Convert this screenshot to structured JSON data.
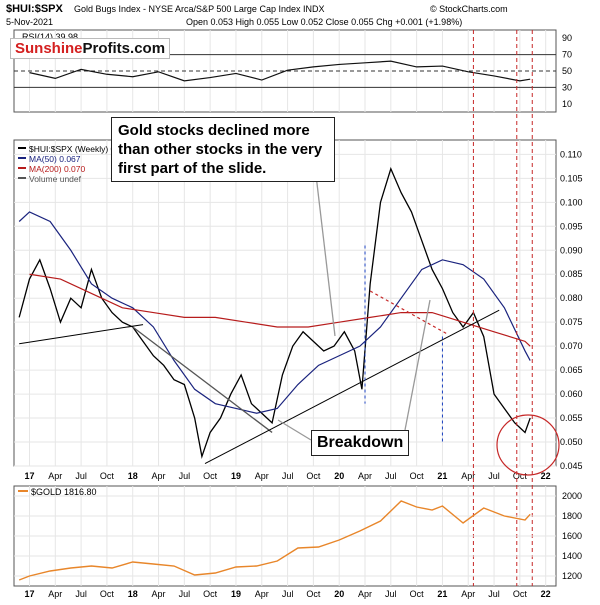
{
  "header": {
    "symbol": "$HUI:$SPX",
    "name": "Gold Bugs Index - NYSE Arca/S&P 500 Large Cap Index",
    "exchange": "INDX",
    "date": "5-Nov-2021",
    "quote": "Open 0.053  High 0.055  Low 0.052  Close 0.055  Chg +0.001 (+1.98%)",
    "credit": "© StockCharts.com"
  },
  "watermark": {
    "part1": "Sunshine",
    "part2": "Profits.com"
  },
  "colors": {
    "price": "#000000",
    "ma50": "#1a237e",
    "ma200": "#b71c1c",
    "gold": "#e8862a",
    "annotation_red": "#c62828",
    "annotation_blue": "#1a3fbf",
    "grid": "#e6e6e6"
  },
  "annotations": {
    "callout_main": "Gold stocks declined more than other stocks in the very first part of the slide.",
    "callout_breakdown": "Breakdown"
  },
  "chart_data": [
    {
      "type": "line",
      "panel": "rsi",
      "label": "RSI(14) 39.98",
      "ylim": [
        0,
        100
      ],
      "y_ticks": [
        10,
        30,
        50,
        70,
        90
      ],
      "reference_lines": [
        30,
        50,
        70
      ],
      "x": [
        2017.0,
        2017.25,
        2017.5,
        2017.75,
        2018.0,
        2018.25,
        2018.5,
        2018.75,
        2019.0,
        2019.25,
        2019.5,
        2019.75,
        2020.0,
        2020.25,
        2020.5,
        2020.75,
        2021.0,
        2021.25,
        2021.5,
        2021.75,
        2021.85
      ],
      "values": [
        48,
        41,
        52,
        46,
        43,
        49,
        38,
        42,
        47,
        39,
        51,
        55,
        58,
        60,
        62,
        55,
        56,
        49,
        44,
        38,
        40
      ]
    },
    {
      "type": "line",
      "panel": "main",
      "ylim": [
        0.045,
        0.113
      ],
      "y_ticks": [
        0.045,
        0.05,
        0.055,
        0.06,
        0.065,
        0.07,
        0.075,
        0.08,
        0.085,
        0.09,
        0.095,
        0.1,
        0.105,
        0.11
      ],
      "xlim": [
        2016.85,
        2022.1
      ],
      "x_tick_labels": [
        "17",
        "Apr",
        "Jul",
        "Oct",
        "18",
        "Apr",
        "Jul",
        "Oct",
        "19",
        "Apr",
        "Jul",
        "Oct",
        "20",
        "Apr",
        "Jul",
        "Oct",
        "21",
        "Apr",
        "Jul",
        "Oct",
        "22"
      ],
      "grid": true,
      "series": [
        {
          "name": "$HUI:$SPX (Weekly) 0.055",
          "x": [
            2016.9,
            2017.0,
            2017.1,
            2017.2,
            2017.3,
            2017.4,
            2017.5,
            2017.6,
            2017.7,
            2017.8,
            2017.9,
            2018.0,
            2018.1,
            2018.2,
            2018.3,
            2018.4,
            2018.5,
            2018.6,
            2018.67,
            2018.75,
            2018.85,
            2018.95,
            2019.05,
            2019.15,
            2019.25,
            2019.35,
            2019.45,
            2019.55,
            2019.65,
            2019.75,
            2019.85,
            2019.95,
            2020.05,
            2020.15,
            2020.22,
            2020.3,
            2020.4,
            2020.5,
            2020.6,
            2020.7,
            2020.8,
            2020.9,
            2021.0,
            2021.1,
            2021.2,
            2021.3,
            2021.4,
            2021.5,
            2021.6,
            2021.7,
            2021.8,
            2021.85
          ],
          "values": [
            0.076,
            0.084,
            0.088,
            0.082,
            0.075,
            0.08,
            0.078,
            0.086,
            0.08,
            0.077,
            0.075,
            0.074,
            0.071,
            0.068,
            0.066,
            0.063,
            0.062,
            0.055,
            0.047,
            0.052,
            0.055,
            0.06,
            0.064,
            0.058,
            0.056,
            0.054,
            0.064,
            0.07,
            0.073,
            0.071,
            0.069,
            0.07,
            0.073,
            0.069,
            0.061,
            0.083,
            0.1,
            0.107,
            0.102,
            0.098,
            0.092,
            0.086,
            0.082,
            0.077,
            0.074,
            0.077,
            0.072,
            0.06,
            0.057,
            0.054,
            0.052,
            0.055
          ]
        },
        {
          "name": "MA(50) 0.067",
          "x": [
            2016.9,
            2017.0,
            2017.2,
            2017.4,
            2017.6,
            2017.8,
            2018.0,
            2018.2,
            2018.4,
            2018.6,
            2018.8,
            2019.0,
            2019.2,
            2019.4,
            2019.6,
            2019.8,
            2020.0,
            2020.2,
            2020.4,
            2020.6,
            2020.8,
            2021.0,
            2021.2,
            2021.4,
            2021.6,
            2021.8,
            2021.85
          ],
          "values": [
            0.096,
            0.098,
            0.096,
            0.09,
            0.083,
            0.08,
            0.078,
            0.074,
            0.067,
            0.061,
            0.058,
            0.057,
            0.056,
            0.057,
            0.062,
            0.066,
            0.068,
            0.07,
            0.074,
            0.08,
            0.086,
            0.088,
            0.087,
            0.084,
            0.078,
            0.069,
            0.067
          ]
        },
        {
          "name": "MA(200) 0.070",
          "x": [
            2017.0,
            2017.3,
            2017.6,
            2017.9,
            2018.2,
            2018.5,
            2018.8,
            2019.1,
            2019.4,
            2019.7,
            2020.0,
            2020.3,
            2020.6,
            2020.9,
            2021.2,
            2021.5,
            2021.8,
            2021.85
          ],
          "values": [
            0.085,
            0.084,
            0.081,
            0.078,
            0.077,
            0.076,
            0.076,
            0.075,
            0.074,
            0.074,
            0.075,
            0.076,
            0.077,
            0.077,
            0.075,
            0.073,
            0.071,
            0.07
          ]
        }
      ],
      "legend_extra": "Volume undef",
      "legend_position": "top-left"
    },
    {
      "type": "line",
      "panel": "gold",
      "series": [
        {
          "name": "$GOLD 1816.80",
          "x": [
            2016.9,
            2017.0,
            2017.2,
            2017.4,
            2017.6,
            2017.8,
            2018.0,
            2018.2,
            2018.4,
            2018.6,
            2018.8,
            2019.0,
            2019.2,
            2019.4,
            2019.6,
            2019.8,
            2020.0,
            2020.2,
            2020.4,
            2020.6,
            2020.75,
            2020.9,
            2021.0,
            2021.2,
            2021.4,
            2021.6,
            2021.8,
            2021.85
          ],
          "values": [
            1160,
            1200,
            1250,
            1280,
            1300,
            1280,
            1340,
            1320,
            1300,
            1210,
            1230,
            1290,
            1300,
            1350,
            1480,
            1490,
            1560,
            1650,
            1750,
            1950,
            1890,
            1860,
            1900,
            1730,
            1880,
            1800,
            1760,
            1816.8
          ]
        }
      ],
      "ylim": [
        1100,
        2100
      ],
      "y_ticks": [
        1200,
        1400,
        1600,
        1800,
        2000
      ]
    }
  ]
}
